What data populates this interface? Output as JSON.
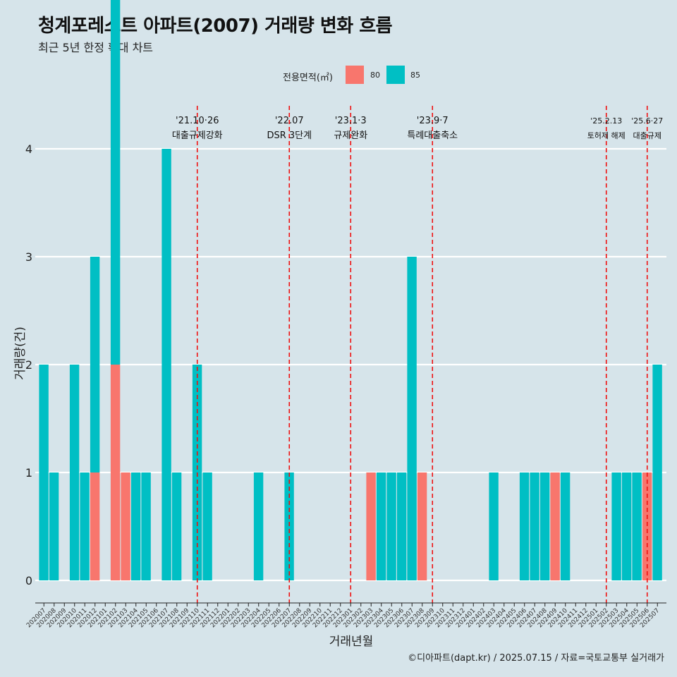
{
  "chart_data": {
    "type": "bar",
    "title": "청계포레스트 아파트(2007) 거래량 변화 흐름",
    "subtitle": "최근 5년 한정 확대 차트",
    "xlabel": "거래년월",
    "ylabel": "거래량(건)",
    "ylim": [
      0,
      4
    ],
    "yticks": [
      "0",
      "1",
      "2",
      "3",
      "4"
    ],
    "legend_title": "전용면적(㎡)",
    "legend_placement": "top",
    "categories": [
      "202007",
      "202008",
      "202009",
      "202010",
      "202011",
      "202012",
      "202101",
      "202102",
      "202103",
      "202104",
      "202105",
      "202106",
      "202107",
      "202108",
      "202109",
      "202110",
      "202111",
      "202112",
      "202201",
      "202202",
      "202203",
      "202204",
      "202205",
      "202206",
      "202207",
      "202208",
      "202209",
      "202210",
      "202211",
      "202212",
      "202301",
      "202302",
      "202303",
      "202304",
      "202305",
      "202306",
      "202307",
      "202308",
      "202309",
      "202310",
      "202311",
      "202312",
      "202401",
      "202402",
      "202403",
      "202404",
      "202405",
      "202406",
      "202407",
      "202408",
      "202409",
      "202410",
      "202411",
      "202412",
      "202501",
      "202502",
      "202503",
      "202504",
      "202505",
      "202506",
      "202507"
    ],
    "series": [
      {
        "name": "80",
        "color": "#f8766d",
        "values": [
          0,
          0,
          0,
          0,
          0,
          1,
          0,
          2,
          1,
          0,
          0,
          0,
          0,
          0,
          0,
          0,
          0,
          0,
          0,
          0,
          0,
          0,
          0,
          0,
          0,
          0,
          0,
          0,
          0,
          0,
          0,
          0,
          1,
          0,
          0,
          0,
          0,
          1,
          0,
          0,
          0,
          0,
          0,
          0,
          0,
          0,
          0,
          0,
          0,
          0,
          1,
          0,
          0,
          0,
          0,
          0,
          0,
          0,
          0,
          1,
          0
        ]
      },
      {
        "name": "85",
        "color": "#00bfc4",
        "values": [
          2,
          1,
          0,
          2,
          1,
          2,
          0,
          4,
          0,
          1,
          1,
          0,
          4,
          1,
          0,
          2,
          1,
          0,
          0,
          0,
          0,
          1,
          0,
          0,
          1,
          0,
          0,
          0,
          0,
          0,
          0,
          0,
          0,
          1,
          1,
          1,
          3,
          0,
          0,
          0,
          0,
          0,
          0,
          0,
          1,
          0,
          0,
          1,
          1,
          1,
          0,
          1,
          0,
          0,
          0,
          0,
          1,
          1,
          1,
          0,
          2
        ]
      }
    ],
    "annotations": [
      {
        "x": "202110",
        "date": "'21.10·26",
        "label": "대출규제강화"
      },
      {
        "x": "202207",
        "date": "'22.07",
        "label": "DSR 3단계"
      },
      {
        "x": "202301",
        "date": "'23.1·3",
        "label": "규제완화"
      },
      {
        "x": "202309",
        "date": "'23.9·7",
        "label": "특례대출축소"
      },
      {
        "x": "202502",
        "date": "'25.2.13",
        "label": "토허제 해제"
      },
      {
        "x": "202506",
        "date": "'25.6·27",
        "label": "대출규제"
      }
    ],
    "grid": true
  },
  "caption": "©디아파트(dapt.kr) / 2025.07.15 / 자료=국토교통부 실거래가"
}
